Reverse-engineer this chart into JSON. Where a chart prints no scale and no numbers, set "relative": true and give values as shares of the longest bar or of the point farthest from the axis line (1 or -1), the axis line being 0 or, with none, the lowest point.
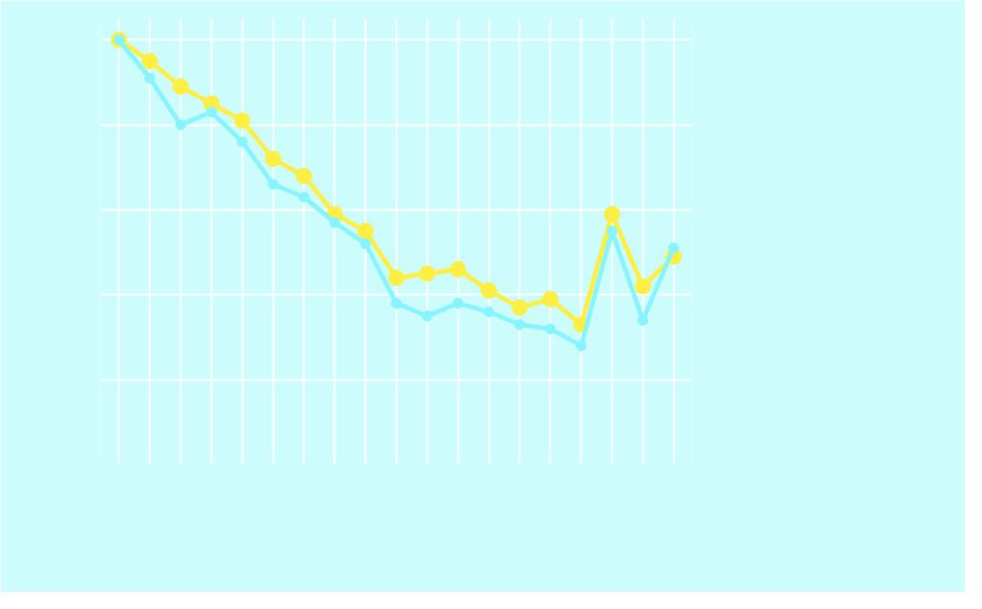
{
  "chart_data": {
    "type": "line",
    "relative": true,
    "grid": true,
    "marker": "circle",
    "line_style": "solid",
    "tick_labels": false,
    "categories": [
      null,
      null,
      null,
      null,
      null,
      null,
      null,
      null,
      null,
      null,
      null,
      null,
      null,
      null,
      null,
      null,
      null,
      null,
      null
    ],
    "series": [
      {
        "color": "#ffee44",
        "values": [
          1.0,
          0.95,
          0.89,
          0.85,
          0.81,
          0.72,
          0.68,
          0.59,
          0.55,
          0.44,
          0.45,
          0.46,
          0.41,
          0.37,
          0.39,
          0.33,
          0.59,
          0.42,
          0.49
        ]
      },
      {
        "color": "#88f4ff",
        "values": [
          1.0,
          0.91,
          0.8,
          0.83,
          0.76,
          0.66,
          0.63,
          0.57,
          0.52,
          0.38,
          0.35,
          0.38,
          0.36,
          0.33,
          0.32,
          0.28,
          0.55,
          0.34,
          0.51
        ]
      }
    ]
  }
}
